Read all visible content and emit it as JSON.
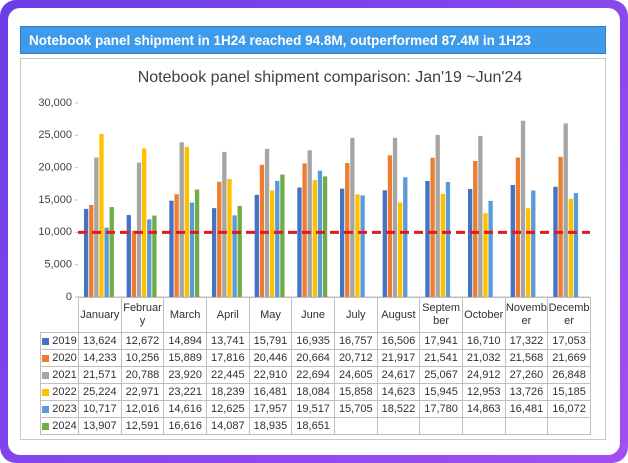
{
  "header": {
    "title": "Notebook panel shipment in 1H24 reached 94.8M, outperformed 87.4M in 1H23"
  },
  "chart_data": {
    "type": "bar",
    "title": "Notebook panel shipment comparison: Jan'19 ~Jun'24",
    "categories": [
      "January",
      "February",
      "March",
      "April",
      "May",
      "June",
      "July",
      "August",
      "September",
      "October",
      "November",
      "December"
    ],
    "ylim": [
      0,
      30000
    ],
    "yticks": [
      0,
      {
        "value": 5000,
        "label": "5,000"
      },
      {
        "value": 10000,
        "label": "10,000"
      },
      {
        "value": 15000,
        "label": "15,000"
      },
      {
        "value": 20000,
        "label": "20,000"
      },
      {
        "value": 25000,
        "label": "25,000"
      },
      {
        "value": 30000,
        "label": "30,000"
      }
    ],
    "reference_line": {
      "value": 10000,
      "color": "#e31a1c"
    },
    "series": [
      {
        "name": "2019",
        "color": "#4472c4",
        "values": [
          13624,
          12672,
          14894,
          13741,
          15791,
          16935,
          16757,
          16506,
          17941,
          16710,
          17322,
          17053
        ],
        "value_labels": [
          "13,624",
          "12,672",
          "14,894",
          "13,741",
          "15,791",
          "16,935",
          "16,757",
          "16,506",
          "17,941",
          "16,710",
          "17,322",
          "17,053"
        ]
      },
      {
        "name": "2020",
        "color": "#ed7d31",
        "values": [
          14233,
          10256,
          15889,
          17816,
          20446,
          20664,
          20712,
          21917,
          21541,
          21032,
          21568,
          21669
        ],
        "value_labels": [
          "14,233",
          "10,256",
          "15,889",
          "17,816",
          "20,446",
          "20,664",
          "20,712",
          "21,917",
          "21,541",
          "21,032",
          "21,568",
          "21,669"
        ]
      },
      {
        "name": "2021",
        "color": "#a5a5a5",
        "values": [
          21571,
          20788,
          23920,
          22445,
          22910,
          22694,
          24605,
          24617,
          25067,
          24912,
          27260,
          26848
        ],
        "value_labels": [
          "21,571",
          "20,788",
          "23,920",
          "22,445",
          "22,910",
          "22,694",
          "24,605",
          "24,617",
          "25,067",
          "24,912",
          "27,260",
          "26,848"
        ]
      },
      {
        "name": "2022",
        "color": "#ffc000",
        "values": [
          25224,
          22971,
          23221,
          18239,
          16481,
          18084,
          15858,
          14623,
          15945,
          12953,
          13726,
          15185
        ],
        "value_labels": [
          "25,224",
          "22,971",
          "23,221",
          "18,239",
          "16,481",
          "18,084",
          "15,858",
          "14,623",
          "15,945",
          "12,953",
          "13,726",
          "15,185"
        ]
      },
      {
        "name": "2023",
        "color": "#5b9bd5",
        "values": [
          10717,
          12016,
          14616,
          12625,
          17957,
          19517,
          15705,
          18522,
          17780,
          14863,
          16481,
          16072
        ],
        "value_labels": [
          "10,717",
          "12,016",
          "14,616",
          "12,625",
          "17,957",
          "19,517",
          "15,705",
          "18,522",
          "17,780",
          "14,863",
          "16,481",
          "16,072"
        ]
      },
      {
        "name": "2024",
        "color": "#70ad47",
        "values": [
          13907,
          12591,
          16616,
          14087,
          18935,
          18651,
          null,
          null,
          null,
          null,
          null,
          null
        ],
        "value_labels": [
          "13,907",
          "12,591",
          "16,616",
          "14,087",
          "18,935",
          "18,651",
          null,
          null,
          null,
          null,
          null,
          null
        ]
      }
    ]
  }
}
